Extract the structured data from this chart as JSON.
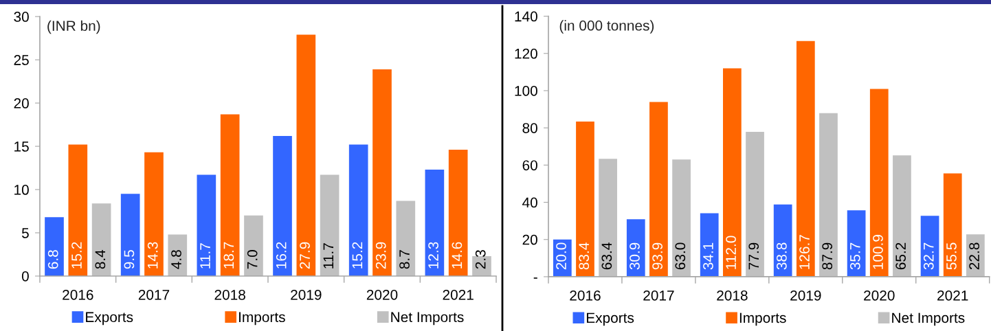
{
  "chart_data": [
    {
      "type": "bar",
      "categories": [
        "2016",
        "2017",
        "2018",
        "2019",
        "2020",
        "2021"
      ],
      "series": [
        {
          "name": "Exports",
          "color": "#3366ff",
          "values": [
            6.8,
            9.5,
            11.7,
            16.2,
            15.2,
            12.3
          ],
          "value_labels": [
            "6.8",
            "9.5",
            "11.7",
            "16.2",
            "15.2",
            "12.3"
          ]
        },
        {
          "name": "Imports",
          "color": "#ff6600",
          "values": [
            15.2,
            14.3,
            18.7,
            27.9,
            23.9,
            14.6
          ],
          "value_labels": [
            "15.2",
            "14.3",
            "18.7",
            "27.9",
            "23.9",
            "14.6"
          ]
        },
        {
          "name": "Net Imports",
          "color": "#c0c0c0",
          "values": [
            8.4,
            4.8,
            7.0,
            11.7,
            8.7,
            2.3
          ],
          "value_labels": [
            "8.4",
            "4.8",
            "7.0",
            "11.7",
            "8.7",
            "2.3"
          ]
        }
      ],
      "ylim": [
        0,
        30
      ],
      "yticks": [
        0,
        5,
        10,
        15,
        20,
        25,
        30
      ],
      "legend": "bottom",
      "annotations": [
        "(INR bn)"
      ]
    },
    {
      "type": "bar",
      "categories": [
        "2016",
        "2017",
        "2018",
        "2019",
        "2020",
        "2021"
      ],
      "series": [
        {
          "name": "Exports",
          "color": "#3366ff",
          "values": [
            20.0,
            30.9,
            34.1,
            38.8,
            35.7,
            32.7
          ],
          "value_labels": [
            "20.0",
            "30.9",
            "34.1",
            "38.8",
            "35.7",
            "32.7"
          ]
        },
        {
          "name": "Imports",
          "color": "#ff6600",
          "values": [
            83.4,
            93.9,
            112.0,
            126.7,
            100.9,
            55.5
          ],
          "value_labels": [
            "83.4",
            "93.9",
            "112.0",
            "126.7",
            "100.9",
            "55.5"
          ]
        },
        {
          "name": "Net Imports",
          "color": "#c0c0c0",
          "values": [
            63.4,
            63.0,
            77.9,
            87.9,
            65.2,
            22.8
          ],
          "value_labels": [
            "63.4",
            "63.0",
            "77.9",
            "87.9",
            "65.2",
            "22.8"
          ]
        }
      ],
      "ylim": [
        0,
        140
      ],
      "yticks": [
        {
          "value": 0,
          "label": "-"
        },
        20,
        40,
        60,
        80,
        100,
        120,
        140
      ],
      "legend": "bottom",
      "annotations": [
        "(in 000 tonnes)"
      ]
    }
  ]
}
